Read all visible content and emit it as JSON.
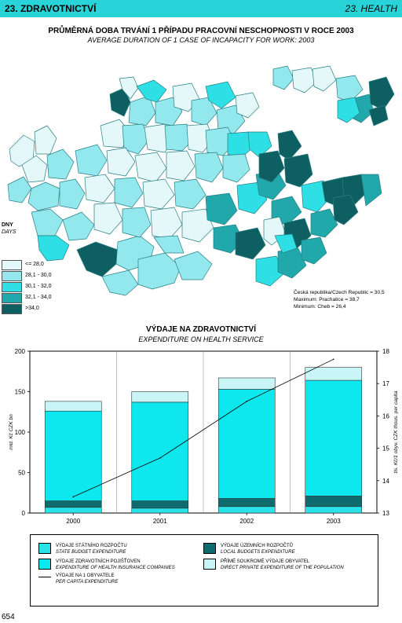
{
  "header": {
    "left": "23. ZDRAVOTNICTVÍ",
    "right": "23. HEALTH"
  },
  "map": {
    "title": "PRŮMĚRNÁ DOBA TRVÁNÍ 1 PŘÍPADU PRACOVNÍ NESCHOPNOSTI V ROCE 2003",
    "subtitle": "AVERAGE DURATION OF 1 CASE OF INCAPACITY FOR WORK: 2003",
    "legend_title": "DNY",
    "legend_title_en": "DAYS",
    "legend": [
      {
        "label": "<= 28,0",
        "color": "#e4f7f9"
      },
      {
        "label": "28,1 - 30,0",
        "color": "#92e8ec"
      },
      {
        "label": "30,1 - 32,0",
        "color": "#2ee0e6"
      },
      {
        "label": "32,1 - 34,0",
        "color": "#21a8ab"
      },
      {
        "label": ">34,0",
        "color": "#0e5f61"
      }
    ],
    "stats": [
      "Česká republika/Czech Republic = 30,5",
      "Maximum: Prachatice = 38,7",
      "Minimum: Cheb = 26,4"
    ]
  },
  "chart_data": {
    "type": "bar",
    "title": "VÝDAJE NA ZDRAVOTNICTVÍ",
    "subtitle": "EXPENDITURE ON HEALTH SERVICE",
    "categories": [
      "2000",
      "2001",
      "2002",
      "2003"
    ],
    "ylabel": "mld. Kč   CZK bn",
    "y2label": "tis. Kč/1 obyv.   CZK thous. per capita",
    "ylim": [
      0,
      200
    ],
    "y2lim": [
      13,
      18
    ],
    "yticks": [
      "0",
      "50",
      "100",
      "150",
      "200"
    ],
    "y2ticks": [
      "13",
      "14",
      "15",
      "16",
      "17",
      "18"
    ],
    "grid": true,
    "series": [
      {
        "name": "VÝDAJE STÁTNÍHO ROZPOČTU",
        "name_en": "STATE BUDGET EXPENDITURE",
        "color": "#29e3e8",
        "values": [
          7,
          6,
          8,
          8
        ]
      },
      {
        "name": "VÝDAJE ÚZEMNÍCH ROZPOČTŮ",
        "name_en": "LOCAL BUDGETS EXPENDITURE",
        "color": "#0e6b6e",
        "values": [
          8,
          9,
          10,
          13
        ]
      },
      {
        "name": "VÝDAJE ZDRAVOTNÍCH POJIŠŤOVEN",
        "name_en": "EXPENDITURE OF HEALTH INSURANCE COMPANIES",
        "color": "#0de8ee",
        "values": [
          111,
          122,
          135,
          143
        ]
      },
      {
        "name": "PŘÍMÉ SOUKROMÉ VÝDAJE OBYVATEL",
        "name_en": "DIRECT PRIVATE EXPENDITURE OF THE POPULATION",
        "color": "#c9f5f7",
        "values": [
          12,
          13,
          14,
          16
        ]
      }
    ],
    "line": {
      "name": "VÝDAJE NA 1 OBYVATELE",
      "name_en": "PER CAPITA EXPENDITURE",
      "values": [
        13.5,
        14.7,
        16.45,
        17.75
      ]
    }
  },
  "page_number": "654"
}
